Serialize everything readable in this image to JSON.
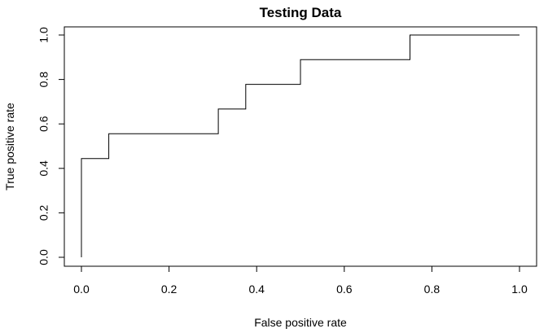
{
  "chart_data": {
    "type": "line",
    "subtype": "step-roc",
    "title": "Testing Data",
    "xlabel": "False positive rate",
    "ylabel": "True positive rate",
    "xlim": [
      0,
      1
    ],
    "ylim": [
      0,
      1
    ],
    "x_ticks": [
      "0.0",
      "0.2",
      "0.4",
      "0.6",
      "0.8",
      "1.0"
    ],
    "y_ticks": [
      "0.0",
      "0.2",
      "0.4",
      "0.6",
      "0.8",
      "1.0"
    ],
    "grid": false,
    "legend": "none",
    "series": [
      {
        "x": [
          0,
          0,
          0.0625,
          0.0625,
          0.3125,
          0.3125,
          0.375,
          0.375,
          0.5,
          0.5,
          0.75,
          0.75,
          1.0
        ],
        "y": [
          0,
          0.444,
          0.444,
          0.556,
          0.556,
          0.667,
          0.667,
          0.778,
          0.778,
          0.889,
          0.889,
          1.0,
          1.0
        ]
      }
    ],
    "colors": {
      "line": "#000000",
      "frame": "#000000",
      "background": "#ffffff"
    }
  }
}
